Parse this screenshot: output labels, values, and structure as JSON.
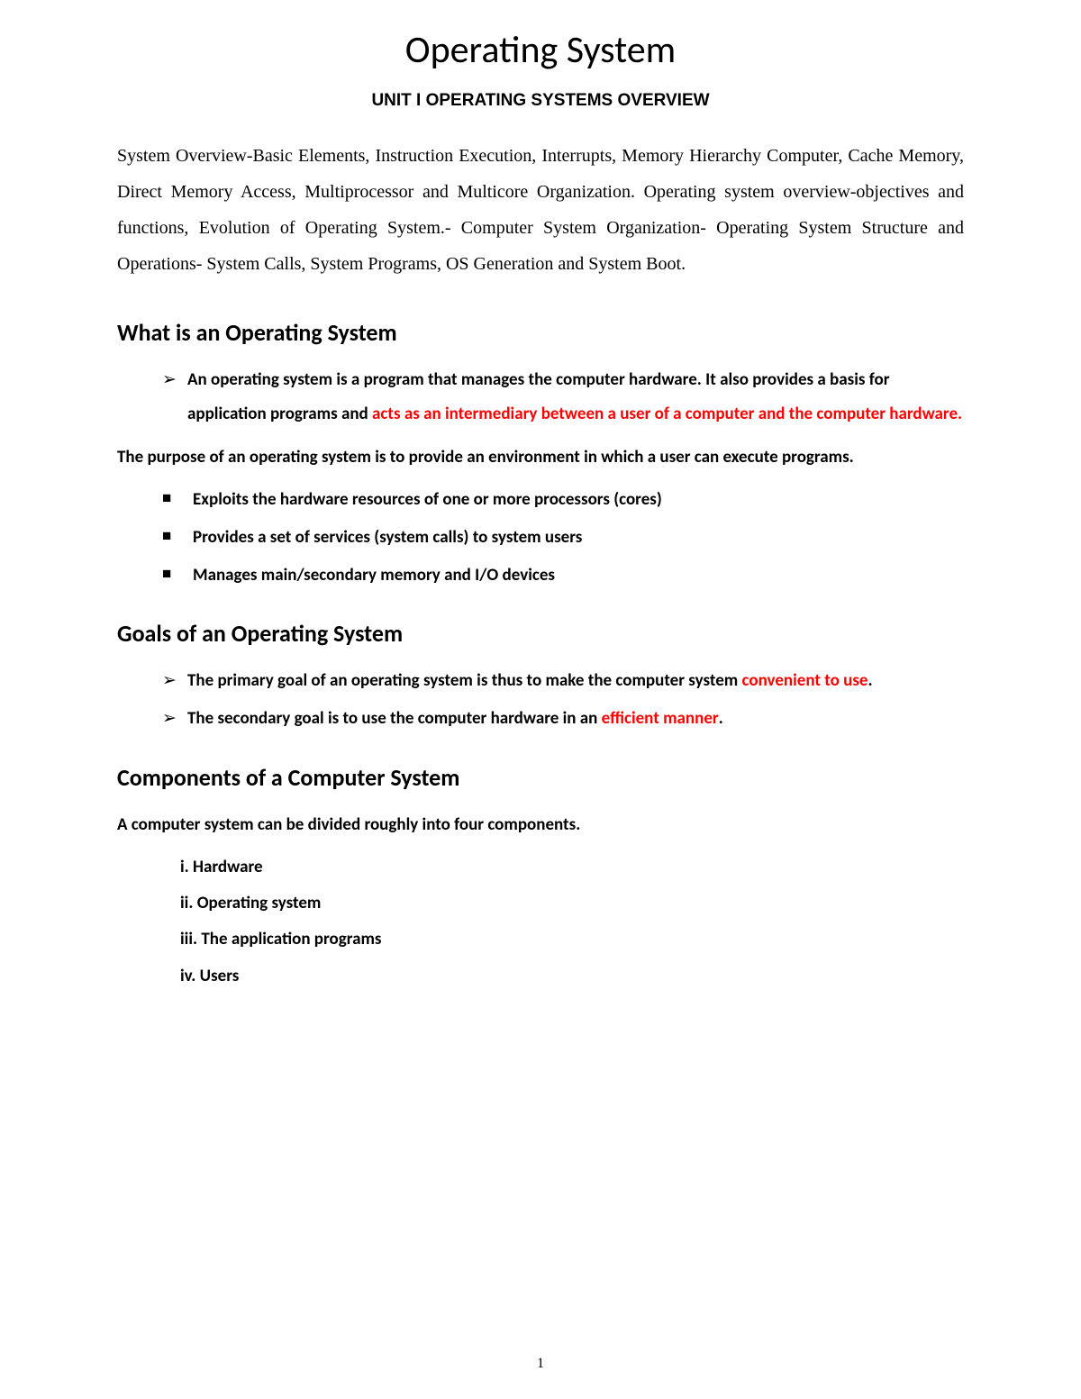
{
  "title": "Operating System",
  "unit_title": "UNIT I OPERATING SYSTEMS OVERVIEW",
  "intro": "System Overview-Basic Elements, Instruction Execution, Interrupts, Memory Hierarchy Computer, Cache Memory, Direct Memory Access, Multiprocessor and Multicore Organization. Operating system overview-objectives and functions, Evolution of Operating System.- Computer System Organization- Operating System Structure and Operations- System Calls, System Programs, OS Generation and System Boot.",
  "sections": {
    "what_is": {
      "heading": "What is an Operating System",
      "bullet1_text": "An operating system is a program that manages the computer hardware. It also provides a basis for application programs and ",
      "bullet1_red": "acts as an intermediary between a user of a computer and the computer hardware.",
      "purpose_para": "The purpose of an operating system is to provide an environment in which a user can execute programs.",
      "squares": [
        "Exploits the hardware resources of one or more processors (cores)",
        "Provides a set of services (system calls) to system users",
        "Manages main/secondary memory and I/O devices"
      ]
    },
    "goals": {
      "heading": "Goals of an Operating System",
      "bullet1_pre": "The primary goal of an operating system is thus to make the computer system ",
      "bullet1_red": "convenient to use",
      "bullet1_post": ".",
      "bullet2_pre": "The secondary goal is to use the computer hardware in an ",
      "bullet2_red": "efficient manner",
      "bullet2_post": "."
    },
    "components": {
      "heading": "Components of a Computer System",
      "intro": "A computer system can be divided roughly into four components.",
      "items": [
        "i. Hardware",
        "ii. Operating system",
        "iii. The application programs",
        "iv. Users"
      ]
    }
  },
  "page_number": "1",
  "colors": {
    "highlight": "#ff0000",
    "text": "#000000",
    "background": "#ffffff"
  }
}
